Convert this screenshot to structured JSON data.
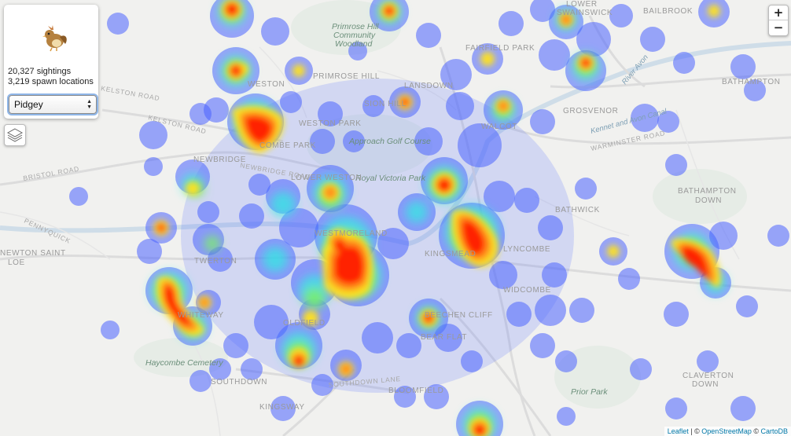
{
  "panel": {
    "sightings": "20,327 sightings",
    "spawn_locations": "3,219 spawn locations",
    "selected_species": "Pidgey",
    "sprite": "pidgey-sprite"
  },
  "controls": {
    "zoom_in": "+",
    "zoom_out": "−",
    "layers_icon": "layers-icon"
  },
  "attribution": {
    "leaflet": "Leaflet",
    "sep1": " | © ",
    "osm": "OpenStreetMap",
    "sep2": " © ",
    "carto": "CartoDB"
  },
  "map_labels": {
    "lower_swainswick": "LOWER",
    "lower_swainswick_2": "SWAINSWICK",
    "bailbrook": "BAILBROOK",
    "primrose_hill_woodland_1": "Primrose Hill",
    "primrose_hill_woodland_2": "Community",
    "primrose_hill_woodland_3": "Woodland",
    "fairfield_park": "FAIRFIELD PARK",
    "primrose_hill": "PRIMROSE HILL",
    "lansdown": "LANSDOWN",
    "weston": "WESTON",
    "kelston_road": "KELSTON ROAD",
    "kelston_road_2": "KELSTON ROAD",
    "sion_hill": "SION HILL",
    "weston_park": "WESTON PARK",
    "grosvenor": "GROSVENOR",
    "walcot": "WALCOT",
    "bathampton": "BATHAMPTON",
    "kennet_avon_canal": "Kennet and Avon Canal",
    "river_avon": "River Avon",
    "warminster_road": "WARMINSTER ROAD",
    "bristol_road": "BRISTOL ROAD",
    "newbridge": "NEWBRIDGE",
    "newbridge_road": "NEWBRIDGE ROAD",
    "combe_park": "COMBE PARK",
    "approach_golf": "Approach Golf Course",
    "royal_victoria_park": "Royal Victoria Park",
    "bathampton_down_1": "BATHAMPTON",
    "bathampton_down_2": "DOWN",
    "bathwick": "BATHWICK",
    "pennyquick": "PENNYQUICK",
    "newton_saint_loe_1": "NEWTON SAINT",
    "newton_saint_loe_2": "LOE",
    "twerton": "TWERTON",
    "oldfield": "OLDFIELD",
    "whiteway": "WHITEWAY",
    "widcombe": "WIDCOMBE",
    "beechen_cliff": "BEECHEN CLIFF",
    "bear_flat": "BEAR FLAT",
    "haycombe_cemetery": "Haycombe Cemetery",
    "southdown": "SOUTHDOWN",
    "bloomfield": "BLOOMFIELD",
    "kingsway": "KINGSWAY",
    "prior_park": "Prior Park",
    "claverton_down_1": "CLAVERTON",
    "claverton_down_2": "DOWN",
    "kingsmead": "KINGSMEAD",
    "lower_weston": "LOWER WESTON",
    "westmoreland": "WESTMORELAND",
    "southdown_lane": "SOUTHDOWN LANE",
    "lyncombe": "LYNCOMBE"
  },
  "heat_colors": {
    "low": "#4a63ff",
    "mid": "#2ef0e0",
    "mid2": "#7df06a",
    "high": "#ffe21a",
    "max": "#ff1a00"
  }
}
